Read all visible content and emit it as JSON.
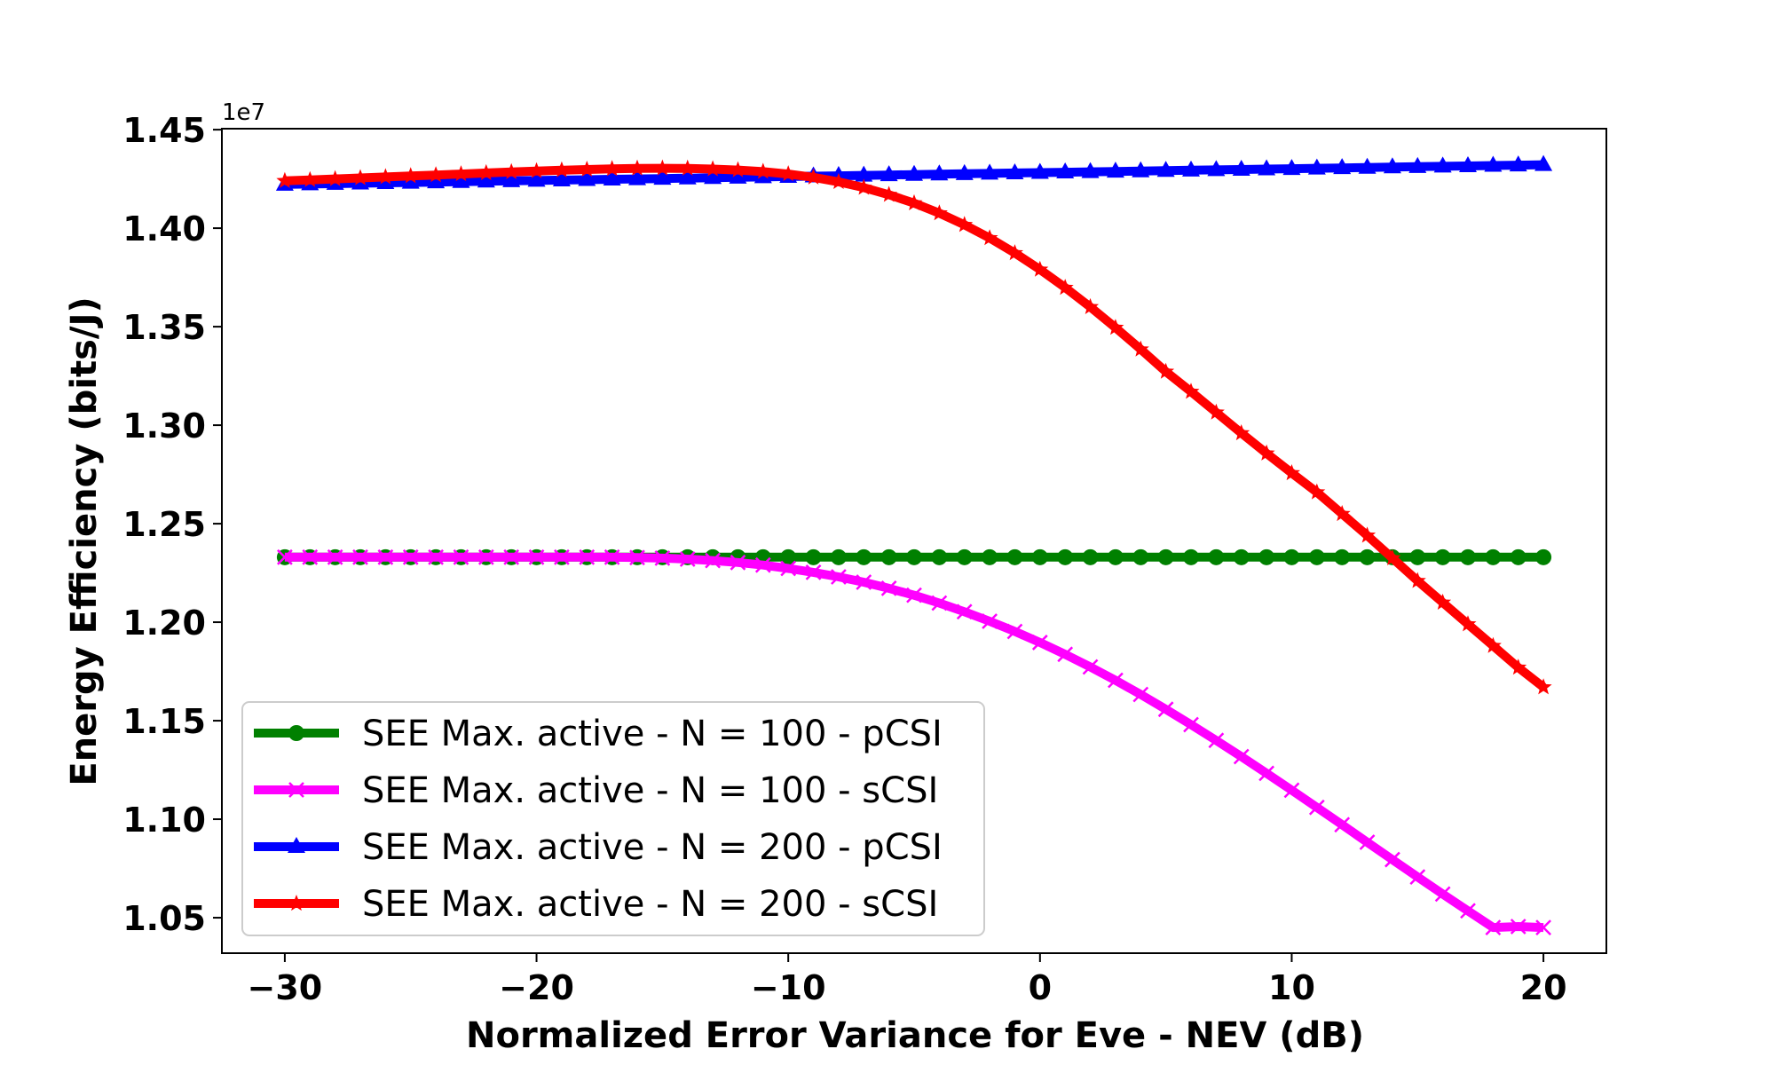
{
  "chart_data": {
    "type": "line",
    "xlabel": "Normalized Error Variance for Eve - NEV (dB)",
    "ylabel": "Energy Efficiency (bits/J)",
    "y_offset_label": "1e7",
    "xlim": [
      -32.5,
      22.5
    ],
    "ylim": [
      1.032,
      1.4505
    ],
    "xticks": [
      -30,
      -20,
      -10,
      0,
      10,
      20
    ],
    "xtick_labels": [
      "−30",
      "−20",
      "−10",
      "0",
      "10",
      "20"
    ],
    "yticks": [
      1.05,
      1.1,
      1.15,
      1.2,
      1.25,
      1.3,
      1.35,
      1.4,
      1.45
    ],
    "ytick_labels": [
      "1.05",
      "1.10",
      "1.15",
      "1.20",
      "1.25",
      "1.30",
      "1.35",
      "1.40",
      "1.45"
    ],
    "grid": false,
    "legend_position": "lower-left",
    "x": [
      -30,
      -29,
      -28,
      -27,
      -26,
      -25,
      -24,
      -23,
      -22,
      -21,
      -20,
      -19,
      -18,
      -17,
      -16,
      -15,
      -14,
      -13,
      -12,
      -11,
      -10,
      -9,
      -8,
      -7,
      -6,
      -5,
      -4,
      -3,
      -2,
      -1,
      0,
      1,
      2,
      3,
      4,
      5,
      6,
      7,
      8,
      9,
      10,
      11,
      12,
      13,
      14,
      15,
      16,
      17,
      18,
      19,
      20
    ],
    "series": [
      {
        "name": "SEE Max. active - N = 100 - pCSI",
        "color": "#008000",
        "marker": "circle",
        "values": [
          1.233,
          1.233,
          1.233,
          1.233,
          1.233,
          1.233,
          1.233,
          1.233,
          1.233,
          1.233,
          1.233,
          1.233,
          1.233,
          1.233,
          1.233,
          1.233,
          1.233,
          1.233,
          1.233,
          1.233,
          1.233,
          1.233,
          1.233,
          1.233,
          1.233,
          1.233,
          1.233,
          1.233,
          1.233,
          1.233,
          1.233,
          1.233,
          1.233,
          1.233,
          1.233,
          1.233,
          1.233,
          1.233,
          1.233,
          1.233,
          1.233,
          1.233,
          1.233,
          1.233,
          1.233,
          1.233,
          1.233,
          1.233,
          1.233,
          1.233,
          1.233
        ]
      },
      {
        "name": "SEE Max. active - N = 100 - sCSI",
        "color": "#ff00ff",
        "marker": "x",
        "values": [
          1.233,
          1.233,
          1.233,
          1.233,
          1.233,
          1.233,
          1.233,
          1.233,
          1.233,
          1.233,
          1.233,
          1.233,
          1.233,
          1.233,
          1.2328,
          1.2325,
          1.232,
          1.2313,
          1.2303,
          1.229,
          1.2273,
          1.2253,
          1.223,
          1.2203,
          1.2172,
          1.2137,
          1.2097,
          1.2053,
          1.2005,
          1.1953,
          1.1897,
          1.1837,
          1.1773,
          1.1705,
          1.1633,
          1.1558,
          1.148,
          1.14,
          1.1318,
          1.1233,
          1.1147,
          1.106,
          1.0972,
          1.0883,
          1.0795,
          1.0707,
          1.062,
          1.0535,
          1.045,
          1.0455,
          1.045
        ]
      },
      {
        "name": "SEE Max. active - N = 200 - pCSI",
        "color": "#0000ff",
        "marker": "triangle",
        "values": [
          1.4222,
          1.4224,
          1.4226,
          1.4228,
          1.423,
          1.4232,
          1.4234,
          1.4236,
          1.4238,
          1.424,
          1.4242,
          1.4244,
          1.4246,
          1.4248,
          1.425,
          1.4252,
          1.4254,
          1.4256,
          1.4258,
          1.426,
          1.4262,
          1.4264,
          1.4266,
          1.4268,
          1.427,
          1.4272,
          1.4274,
          1.4276,
          1.4278,
          1.428,
          1.4282,
          1.4284,
          1.4286,
          1.4288,
          1.429,
          1.4292,
          1.4294,
          1.4296,
          1.4298,
          1.43,
          1.4302,
          1.4304,
          1.4306,
          1.4308,
          1.431,
          1.4312,
          1.4314,
          1.4316,
          1.4318,
          1.432,
          1.4322
        ]
      },
      {
        "name": "SEE Max. active - N = 200 - sCSI",
        "color": "#ff0000",
        "marker": "star",
        "values": [
          1.424,
          1.4245,
          1.425,
          1.4255,
          1.426,
          1.4265,
          1.427,
          1.4275,
          1.428,
          1.4285,
          1.429,
          1.4294,
          1.4298,
          1.4301,
          1.4303,
          1.4304,
          1.4303,
          1.43,
          1.4295,
          1.4287,
          1.4275,
          1.4258,
          1.4235,
          1.4206,
          1.417,
          1.4127,
          1.4076,
          1.4017,
          1.395,
          1.3874,
          1.379,
          1.3698,
          1.36,
          1.3495,
          1.3385,
          1.3272,
          1.317,
          1.3065,
          1.296,
          1.2857,
          1.2757,
          1.266,
          1.255,
          1.244,
          1.2325,
          1.221,
          1.21,
          1.199,
          1.188,
          1.177,
          1.167
        ]
      }
    ]
  }
}
